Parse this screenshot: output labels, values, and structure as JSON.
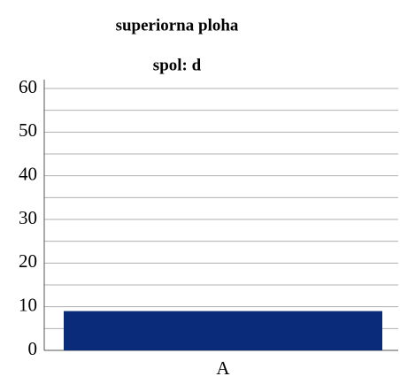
{
  "chart_data": {
    "type": "bar",
    "title": "superiorna ploha",
    "subtitle": "spol: d",
    "categories": [
      "A"
    ],
    "values": [
      9
    ],
    "color": "#0a2a7a",
    "ylim": [
      0,
      60
    ],
    "yticks": [
      0,
      10,
      20,
      30,
      40,
      50,
      60
    ],
    "minor_grid": [
      5,
      15,
      25,
      35,
      45,
      55
    ],
    "grid": true
  }
}
